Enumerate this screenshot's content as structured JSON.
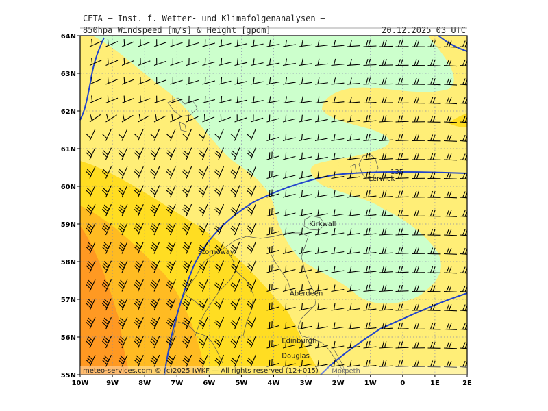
{
  "header": {
    "line1": "CETA — Inst. f. Wetter- und Klimafolgenanalysen —",
    "line2": "850hpa Windspeed [m/s] & Height [gpdm]",
    "datetime": "20.12.2025 03 UTC"
  },
  "footer": "meteo-services.com © (c)2025 IWKF — All rights reserved (12+015)",
  "axes": {
    "lat_labels": [
      "64N",
      "63N",
      "62N",
      "61N",
      "60N",
      "59N",
      "58N",
      "57N",
      "56N",
      "55N"
    ],
    "lon_labels": [
      "10W",
      "9W",
      "8W",
      "7W",
      "6W",
      "5W",
      "4W",
      "3W",
      "2W",
      "1W",
      "0",
      "1E",
      "2E"
    ],
    "lat_range": [
      55,
      64
    ],
    "lon_range": [
      -10,
      2
    ],
    "grid": "dotted"
  },
  "contour_label": "135",
  "cities": [
    {
      "name": "Lerwick",
      "lon": -1.05,
      "lat": 60.15
    },
    {
      "name": "Kirkwall",
      "lon": -2.9,
      "lat": 58.95
    },
    {
      "name": "Stornoway",
      "lon": -6.35,
      "lat": 58.2
    },
    {
      "name": "Aberdeen",
      "lon": -3.5,
      "lat": 57.1
    },
    {
      "name": "Edinburgh",
      "lon": -3.75,
      "lat": 55.85
    },
    {
      "name": "Douglas",
      "lon": -3.75,
      "lat": 55.45
    },
    {
      "name": "Morpeth",
      "lon": -2.2,
      "lat": 55.05
    }
  ],
  "colors": {
    "light_green": "#ccffcc",
    "light_yellow": "#ffee77",
    "yellow": "#ffdd22",
    "orange": "#ffbb22",
    "dark_orange": "#ff9922",
    "contour": "#2244cc"
  }
}
